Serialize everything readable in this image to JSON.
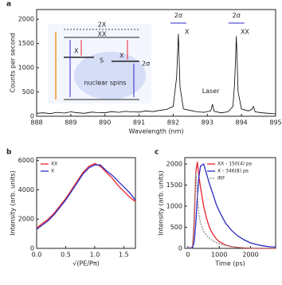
{
  "chart_data": [
    {
      "type": "line",
      "panel": "a",
      "xlabel": "Wavelength (nm)",
      "ylabel": "Counts per second",
      "x": [
        888,
        888.2,
        888.4,
        888.6,
        888.8,
        889,
        889.2,
        889.4,
        889.6,
        889.8,
        890,
        890.2,
        890.4,
        890.6,
        890.8,
        891,
        891.2,
        891.4,
        891.6,
        891.8,
        892,
        892.1,
        892.15,
        892.2,
        892.3,
        892.5,
        892.7,
        892.9,
        893.1,
        893.15,
        893.2,
        893.4,
        893.6,
        893.75,
        893.8,
        893.85,
        893.9,
        894,
        894.2,
        894.3,
        894.35,
        894.4,
        894.6,
        894.8,
        895
      ],
      "values": [
        60,
        70,
        55,
        80,
        65,
        90,
        70,
        60,
        85,
        75,
        70,
        95,
        80,
        100,
        90,
        85,
        110,
        95,
        120,
        140,
        200,
        800,
        1700,
        600,
        150,
        120,
        90,
        80,
        110,
        250,
        100,
        70,
        90,
        200,
        700,
        1650,
        500,
        150,
        110,
        140,
        200,
        90,
        70,
        60,
        50
      ],
      "color": "#000000",
      "xlim": [
        888,
        895
      ],
      "xticks": [
        888,
        889,
        890,
        891,
        892,
        893,
        894,
        895
      ],
      "ylim": [
        0,
        2200
      ],
      "yticks": [
        0,
        500,
        1000,
        1500,
        2000
      ],
      "annotations": [
        "2σ",
        "X",
        "2σ",
        "XX",
        "Laser"
      ],
      "inset": {
        "labels": [
          "2X",
          "XX",
          "X",
          "X",
          "S",
          "2σ",
          "nuclear spins"
        ]
      }
    },
    {
      "type": "line",
      "panel": "b",
      "xlabel": "√(PE/Pπ)",
      "ylabel": "Intensity (arb. units)",
      "x": [
        0,
        0.1,
        0.2,
        0.3,
        0.4,
        0.5,
        0.6,
        0.7,
        0.8,
        0.9,
        1.0,
        1.1,
        1.2,
        1.3,
        1.4,
        1.5,
        1.6,
        1.7
      ],
      "series": [
        {
          "name": "XX",
          "color": "#e8242a",
          "values": [
            1400,
            1700,
            2000,
            2400,
            2900,
            3400,
            4000,
            4600,
            5200,
            5600,
            5800,
            5600,
            5200,
            4800,
            4300,
            3900,
            3500,
            3200
          ]
        },
        {
          "name": "X",
          "color": "#2b2bc4",
          "values": [
            1300,
            1600,
            1900,
            2300,
            2800,
            3300,
            3900,
            4500,
            5100,
            5500,
            5700,
            5700,
            5300,
            5000,
            4600,
            4200,
            3800,
            3300
          ]
        }
      ],
      "xlim": [
        0,
        1.7
      ],
      "xticks": [
        {
          "value": 0,
          "label": "0.0"
        },
        {
          "value": 0.5,
          "label": "0.5"
        },
        {
          "value": 1,
          "label": "1.0"
        },
        {
          "value": 1.5,
          "label": "1.5"
        }
      ],
      "ylim": [
        0,
        6200
      ],
      "yticks": [
        0,
        2000,
        4000,
        6000
      ],
      "legend": "upper left"
    },
    {
      "type": "line",
      "panel": "c",
      "xlabel": "Time (ps)",
      "ylabel": "Intensity (arb. units)",
      "x": [
        0,
        100,
        150,
        200,
        250,
        300,
        350,
        400,
        500,
        600,
        700,
        800,
        900,
        1000,
        1200,
        1400,
        1600,
        1800,
        2000,
        2200,
        2400,
        2600,
        2800
      ],
      "series": [
        {
          "name": "XX - 150(4) ps",
          "color": "#e8242a",
          "values": [
            10,
            10,
            50,
            600,
            1800,
            2050,
            1700,
            1450,
            1000,
            700,
            470,
            330,
            230,
            160,
            80,
            40,
            20,
            10,
            5,
            0,
            0,
            0,
            0
          ]
        },
        {
          "name": "X - 346(8) ps",
          "color": "#2b2bc4",
          "values": [
            10,
            10,
            20,
            150,
            600,
            1200,
            1700,
            1950,
            2000,
            1750,
            1500,
            1280,
            1050,
            880,
            600,
            420,
            290,
            200,
            130,
            90,
            60,
            40,
            30
          ]
        },
        {
          "name": "IRF",
          "color": "#888888",
          "dash": true,
          "values": [
            0,
            0,
            50,
            800,
            1800,
            1300,
            800,
            600,
            400,
            300,
            230,
            180,
            140,
            110,
            70,
            40,
            25,
            15,
            10,
            5,
            5,
            5,
            5
          ]
        }
      ],
      "xlim": [
        -100,
        2800
      ],
      "xticks": [
        0,
        1000,
        2000
      ],
      "ylim": [
        0,
        2150
      ],
      "yticks": [
        0,
        500,
        1000,
        1500,
        2000
      ],
      "legend": "upper right"
    }
  ]
}
